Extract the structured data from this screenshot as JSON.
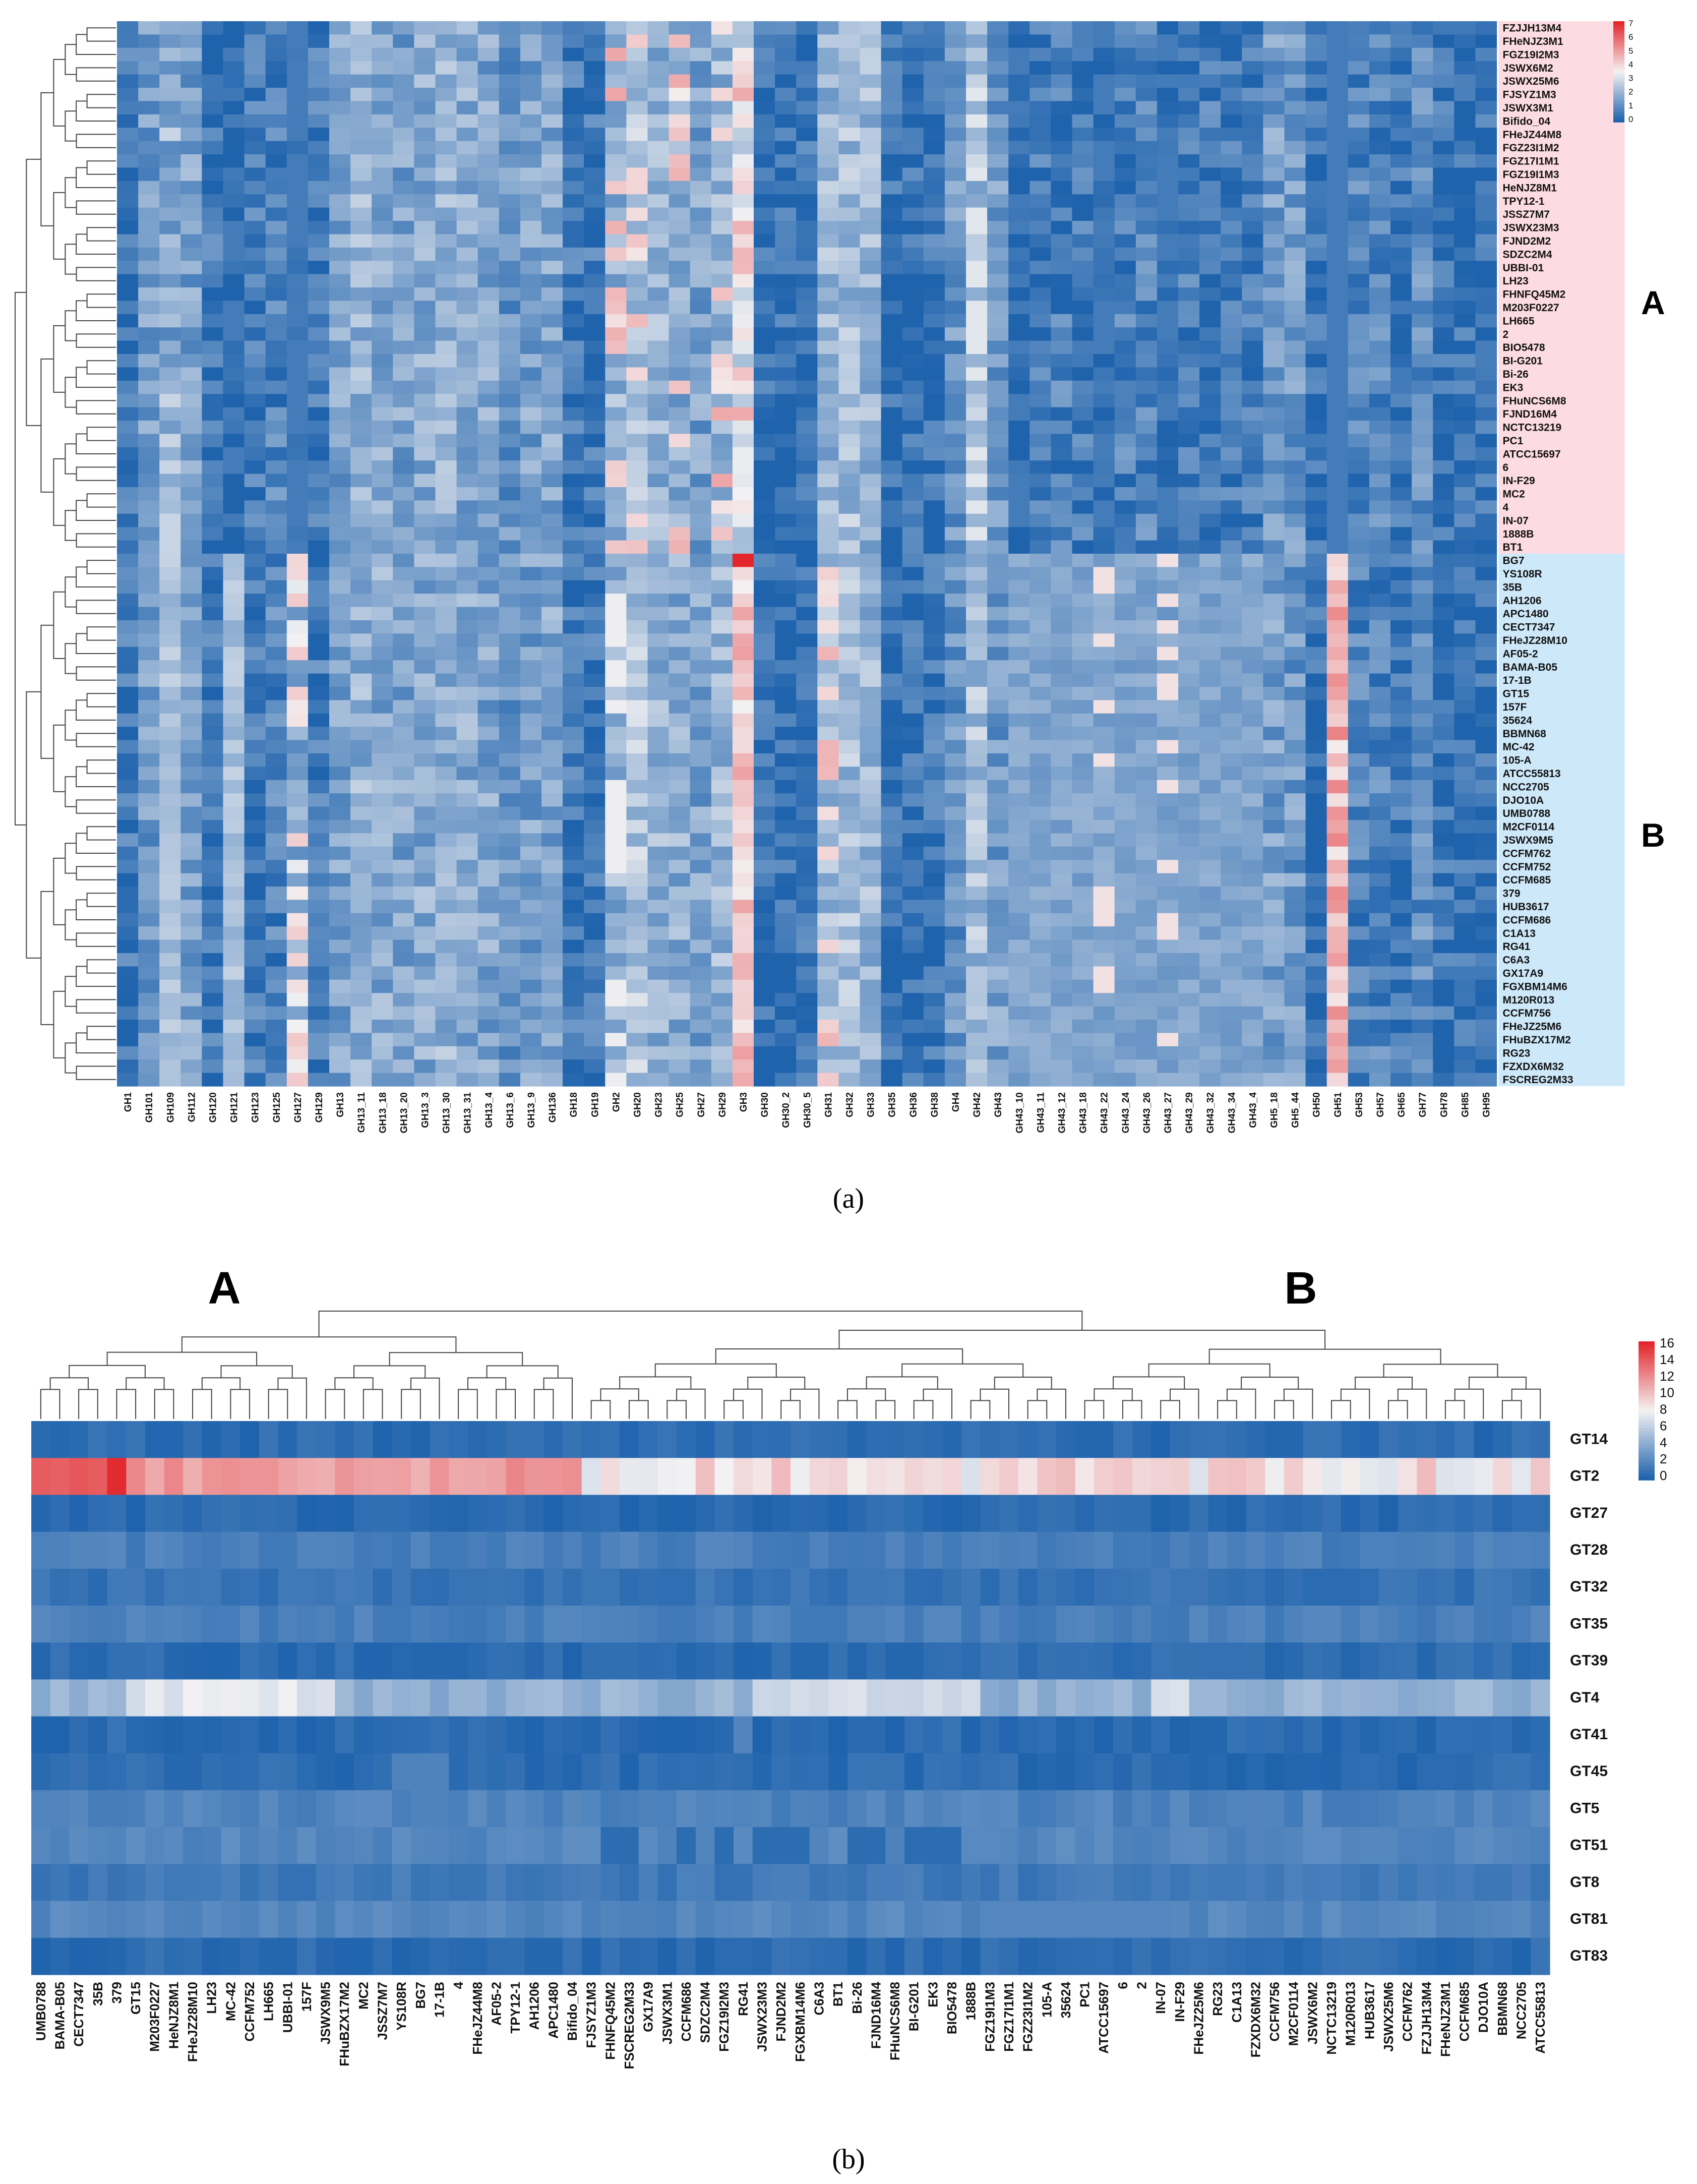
{
  "panel_a_label": "(a)",
  "panel_b_label": "(b)",
  "chart_data": [
    {
      "type": "heatmap",
      "title": "",
      "panel": "a",
      "rows": [
        "FZJJH13M4",
        "FHeNJZ3M1",
        "FGZ19I2M3",
        "JSWX6M2",
        "JSWX25M6",
        "FJSYZ1M3",
        "JSWX3M1",
        "Bifido_04",
        "FHeJZ44M8",
        "FGZ23I1M2",
        "FGZ17I1M1",
        "FGZ19I1M3",
        "HeNJZ8M1",
        "TPY12-1",
        "JSSZ7M7",
        "JSWX23M3",
        "FJND2M2",
        "SDZC2M4",
        "UBBI-01",
        "LH23",
        "FHNFQ45M2",
        "M203F0227",
        "LH665",
        "2",
        "BIO5478",
        "BI-G201",
        "Bi-26",
        "EK3",
        "FHuNCS6M8",
        "FJND16M4",
        "NCTC13219",
        "PC1",
        "ATCC15697",
        "6",
        "IN-F29",
        "MC2",
        "4",
        "IN-07",
        "1888B",
        "BT1",
        "BG7",
        "YS108R",
        "35B",
        "AH1206",
        "APC1480",
        "CECT7347",
        "FHeJZ28M10",
        "AF05-2",
        "BAMA-B05",
        "17-1B",
        "GT15",
        "157F",
        "35624",
        "BBMN68",
        "MC-42",
        "105-A",
        "ATCC55813",
        "NCC2705",
        "DJO10A",
        "UMB0788",
        "M2CF0114",
        "JSWX9M5",
        "CCFM762",
        "CCFM752",
        "CCFM685",
        "379",
        "HUB3617",
        "CCFM686",
        "C1A13",
        "RG41",
        "C6A3",
        "GX17A9",
        "FGXBM14M6",
        "M120R013",
        "CCFM756",
        "FHeJZ25M6",
        "FHuBZX17M2",
        "RG23",
        "FZXDX6M32",
        "FSCREG2M33"
      ],
      "columns": [
        "GH1",
        "GH101",
        "GH109",
        "GH112",
        "GH120",
        "GH121",
        "GH123",
        "GH125",
        "GH127",
        "GH129",
        "GH13",
        "GH13_11",
        "GH13_18",
        "GH13_20",
        "GH13_3",
        "GH13_30",
        "GH13_31",
        "GH13_4",
        "GH13_6",
        "GH13_9",
        "GH136",
        "GH18",
        "GH19",
        "GH2",
        "GH20",
        "GH23",
        "GH25",
        "GH27",
        "GH29",
        "GH3",
        "GH30",
        "GH30_2",
        "GH30_5",
        "GH31",
        "GH32",
        "GH33",
        "GH35",
        "GH36",
        "GH38",
        "GH4",
        "GH42",
        "GH43",
        "GH43_10",
        "GH43_11",
        "GH43_12",
        "GH43_18",
        "GH43_22",
        "GH43_24",
        "GH43_26",
        "GH43_27",
        "GH43_29",
        "GH43_32",
        "GH43_34",
        "GH43_4",
        "GH5_18",
        "GH5_44",
        "GH50",
        "GH51",
        "GH53",
        "GH57",
        "GH65",
        "GH77",
        "GH78",
        "GH85",
        "GH95"
      ],
      "colorbar": {
        "min": 0,
        "max": 7,
        "ticks": [
          "7",
          "6",
          "5",
          "4",
          "3",
          "2",
          "1",
          "0"
        ]
      },
      "clusters": [
        {
          "label": "A",
          "row_span": "FZJJH13M4 to BT1"
        },
        {
          "label": "B",
          "row_span": "BG7 to FSCREG2M33"
        }
      ],
      "values_note": "Cell counts 0-7 (blue=0, white≈3.5, red=7) as read from the image",
      "colors": {
        "low": "#1f63ad",
        "mid": "#f4f2f3",
        "high": "#e2262b",
        "cluster_a_bg": "#fddbe2",
        "cluster_b_bg": "#cde8f9"
      }
    },
    {
      "type": "heatmap",
      "title": "",
      "panel": "b",
      "rows": [
        "GT14",
        "GT2",
        "GT27",
        "GT28",
        "GT32",
        "GT35",
        "GT39",
        "GT4",
        "GT41",
        "GT45",
        "GT5",
        "GT51",
        "GT8",
        "GT81",
        "GT83"
      ],
      "columns": [
        "UMB0788",
        "BAMA-B05",
        "CECT7347",
        "35B",
        "379",
        "GT15",
        "M203F0227",
        "HeNJZ8M1",
        "FHeJZ28M10",
        "LH23",
        "MC-42",
        "CCFM752",
        "LH665",
        "UBBI-01",
        "157F",
        "JSWX9M5",
        "FHuBZX17M2",
        "MC2",
        "JSSZ7M7",
        "YS108R",
        "BG7",
        "17-1B",
        "4",
        "FHeJZ44M8",
        "AF05-2",
        "TPY12-1",
        "AH1206",
        "APC1480",
        "Bifido_04",
        "FJSYZ1M3",
        "FHNFQ45M2",
        "FSCREG2M33",
        "GX17A9",
        "JSWX3M1",
        "CCFM686",
        "SDZC2M4",
        "FGZ19I2M3",
        "RG41",
        "JSWX23M3",
        "FJND2M2",
        "FGXBM14M6",
        "C6A3",
        "BT1",
        "Bi-26",
        "FJND16M4",
        "FHuNCS6M8",
        "BI-G201",
        "EK3",
        "BIO5478",
        "1888B",
        "FGZ19I1M3",
        "FGZ17I1M1",
        "FGZ23I1M2",
        "105-A",
        "35624",
        "PC1",
        "ATCC15697",
        "6",
        "2",
        "IN-07",
        "IN-F29",
        "FHeJZ25M6",
        "RG23",
        "C1A13",
        "FZXDX6M32",
        "CCFM756",
        "M2CF0114",
        "JSWX6M2",
        "NCTC13219",
        "M120R013",
        "HUB3617",
        "JSWX25M6",
        "CCFM762",
        "FZJJH13M4",
        "FHeNJZ3M1",
        "CCFM685",
        "DJO10A",
        "BBMN68",
        "NCC2705",
        "ATCC55813"
      ],
      "colorbar": {
        "min": 0,
        "max": 16,
        "ticks": [
          "16",
          "14",
          "12",
          "10",
          "8",
          "6",
          "4",
          "2",
          "0"
        ]
      },
      "clusters": [
        {
          "label": "A",
          "column_span": "UMB0788 to Bifido_04"
        },
        {
          "label": "B",
          "column_span": "FJSYZ1M3 to ATCC55813"
        }
      ],
      "values_note": "Cell counts 0-16 (blue=0, white≈8, red=16) as read from the image",
      "colors": {
        "low": "#1f63ad",
        "mid": "#f4f2f3",
        "high": "#e2262b"
      }
    }
  ]
}
